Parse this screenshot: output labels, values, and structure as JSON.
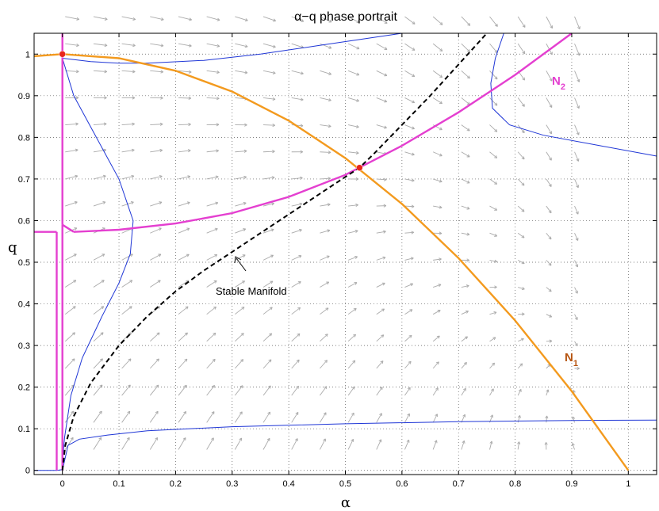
{
  "chart_data": {
    "type": "line",
    "title": "α−q phase portrait",
    "xlabel": "α",
    "ylabel": "q",
    "xlim": [
      -0.05,
      1.05
    ],
    "ylim": [
      -0.01,
      1.05
    ],
    "xticks": [
      "0",
      "0.1",
      "0.2",
      "0.3",
      "0.4",
      "0.5",
      "0.6",
      "0.7",
      "0.8",
      "0.9",
      "1"
    ],
    "yticks": [
      "0",
      "0.1",
      "0.2",
      "0.3",
      "0.4",
      "0.5",
      "0.6",
      "0.7",
      "0.8",
      "0.9",
      "1"
    ],
    "grid": true,
    "colors": {
      "n1": "#f39a1e",
      "n2": "#e43fd0",
      "trajectory": "#1f36d6",
      "manifold": "#000000",
      "vector_field": "#aaaaaa",
      "equilibrium": "#e8261c"
    },
    "nullclines": [
      {
        "name": "N",
        "subscript": "1",
        "label_color": "#b5530f",
        "x": [
          0,
          0.1,
          0.2,
          0.3,
          0.4,
          0.5,
          0.6,
          0.7,
          0.8,
          0.9,
          1.0
        ],
        "y": [
          1.0,
          0.99,
          0.96,
          0.91,
          0.84,
          0.75,
          0.64,
          0.51,
          0.36,
          0.19,
          0.0
        ]
      },
      {
        "name": "N",
        "subscript": "2",
        "label_color": "#e43fd0",
        "x": [
          0.02,
          0.1,
          0.2,
          0.3,
          0.4,
          0.5,
          0.6,
          0.7,
          0.8,
          0.9,
          0.9
        ],
        "y": [
          0.573,
          0.578,
          0.593,
          0.618,
          0.657,
          0.71,
          0.78,
          0.86,
          0.95,
          1.05,
          1.05
        ]
      }
    ],
    "stable_manifold": {
      "label": "Stable Manifold",
      "x": [
        0,
        0.005,
        0.02,
        0.05,
        0.1,
        0.15,
        0.2,
        0.25,
        0.3,
        0.35,
        0.4,
        0.45,
        0.5,
        0.525,
        0.55,
        0.6,
        0.65,
        0.7,
        0.75
      ],
      "y": [
        0.0,
        0.06,
        0.13,
        0.21,
        0.3,
        0.37,
        0.43,
        0.48,
        0.525,
        0.57,
        0.615,
        0.66,
        0.705,
        0.727,
        0.76,
        0.83,
        0.9,
        0.975,
        1.06
      ]
    },
    "equilibria": [
      {
        "x": 0,
        "y": 1.0
      },
      {
        "x": 0.525,
        "y": 0.727
      }
    ]
  }
}
